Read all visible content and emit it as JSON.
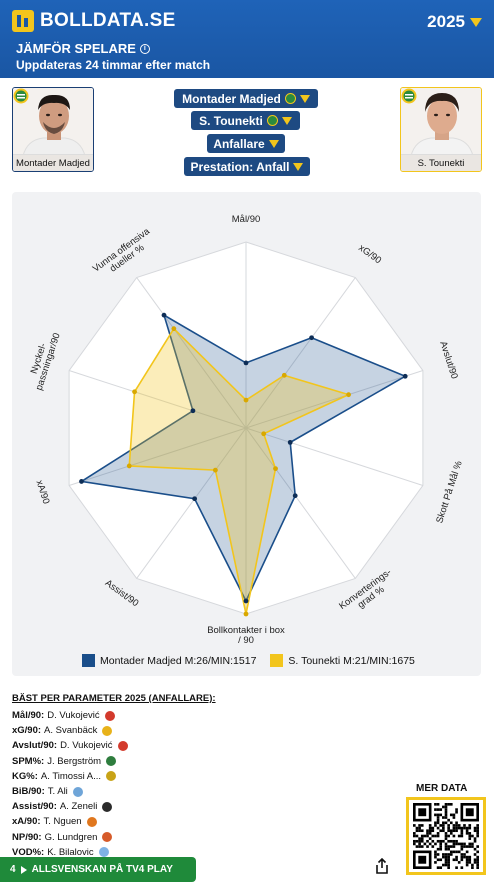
{
  "header": {
    "logo_text": "BOLLDATA.SE",
    "year": "2025",
    "title": "JÄMFÖR SPELARE",
    "subtitle": "Uppdateras 24 timmar efter match"
  },
  "players": [
    {
      "name": "Montader Madjed",
      "color": "#1a3f74"
    },
    {
      "name": "S. Tounekti",
      "color": "#f2c51c"
    }
  ],
  "selectors": {
    "player1": "Montader Madjed",
    "player2": "S. Tounekti",
    "position": "Anfallare",
    "mode": "Prestation: Anfall"
  },
  "chart_data": {
    "type": "radar",
    "axes": [
      "Mål/90",
      "xG/90",
      "Avslut/90",
      "Skott På Mål %",
      "Konverterings- grad %",
      "Bollkontakter i box / 90",
      "Assist/90",
      "xA/90",
      "Nyckel- passningar/90",
      "Vunna offensiva dueller %"
    ],
    "ticks": 5,
    "series": [
      {
        "name": "Montader Madjed M:26/MIN:1517",
        "color": "#1a4e8a",
        "values": [
          0.35,
          0.6,
          0.9,
          0.25,
          0.45,
          0.93,
          0.47,
          0.93,
          0.3,
          0.75
        ]
      },
      {
        "name": "S. Tounekti M:21/MIN:1675",
        "color": "#f2c51c",
        "values": [
          0.15,
          0.35,
          0.58,
          0.1,
          0.27,
          1.0,
          0.28,
          0.66,
          0.63,
          0.66
        ]
      }
    ]
  },
  "best": {
    "title": "BÄST PER PARAMETER 2025 (ANFALLARE):",
    "rows": [
      {
        "param": "Mål/90:",
        "player": "D. Vukojević",
        "club_color": "#d33a2c"
      },
      {
        "param": "xG/90:",
        "player": "A. Svanbäck",
        "club_color": "#e8b21a"
      },
      {
        "param": "Avslut/90:",
        "player": "D. Vukojević",
        "club_color": "#d33a2c"
      },
      {
        "param": "SPM%:",
        "player": "J. Bergström",
        "club_color": "#2e7d3e"
      },
      {
        "param": "KG%:",
        "player": "A. Timossi A...",
        "club_color": "#c8a317"
      },
      {
        "param": "BiB/90:",
        "player": "T. Ali",
        "club_color": "#6fa5d8"
      },
      {
        "param": "Assist/90:",
        "player": "A. Zeneli",
        "club_color": "#2b2b2b"
      },
      {
        "param": "xA/90:",
        "player": "T. Nguen",
        "club_color": "#e0771e"
      },
      {
        "param": "NP/90:",
        "player": "G. Lundgren",
        "club_color": "#d65b2a"
      },
      {
        "param": "VOD%:",
        "player": "K. Bilalovic",
        "club_color": "#7fb2e5"
      }
    ]
  },
  "footer": {
    "mer_data": "MER DATA",
    "tv4_label": "ALLSVENSKAN PÅ TV4 PLAY",
    "tv4_number": "4"
  }
}
